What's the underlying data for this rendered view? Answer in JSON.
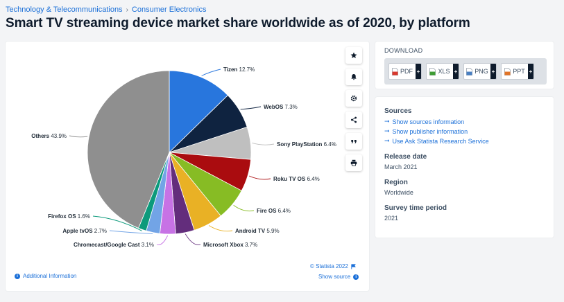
{
  "breadcrumb": {
    "level1": "Technology & Telecommunications",
    "separator": "›",
    "level2": "Consumer Electronics"
  },
  "title": "Smart TV streaming device market share worldwide as of 2020, by platform",
  "chart_data": {
    "type": "pie",
    "title": "",
    "unit": "%",
    "start": "12 o'clock, clockwise",
    "slices": [
      {
        "label": "Tizen",
        "value": 12.7,
        "display": "12.7%",
        "color": "#2876dd"
      },
      {
        "label": "WebOS",
        "value": 7.3,
        "display": "7.3%",
        "color": "#0f2340"
      },
      {
        "label": "Sony PlayStation",
        "value": 6.4,
        "display": "6.4%",
        "color": "#bfbfbf"
      },
      {
        "label": "Roku TV OS",
        "value": 6.4,
        "display": "6.4%",
        "color": "#aa0c0f"
      },
      {
        "label": "Fire OS",
        "value": 6.4,
        "display": "6.4%",
        "color": "#87bc24"
      },
      {
        "label": "Android TV",
        "value": 5.9,
        "display": "5.9%",
        "color": "#e9b125"
      },
      {
        "label": "Microsoft Xbox",
        "value": 3.7,
        "display": "3.7%",
        "color": "#632d7c"
      },
      {
        "label": "Chromecast/Google Cast",
        "value": 3.1,
        "display": "3.1%",
        "color": "#c772e5"
      },
      {
        "label": "Apple tvOS",
        "value": 2.7,
        "display": "2.7%",
        "color": "#72a4e6"
      },
      {
        "label": "Firefox OS",
        "value": 1.6,
        "display": "1.6%",
        "color": "#0c9a7b"
      },
      {
        "label": "Others",
        "value": 43.9,
        "display": "43.9%",
        "color": "#8f8f8f"
      }
    ]
  },
  "toolbar": {
    "icons": [
      "star-icon",
      "bell-icon",
      "gear-icon",
      "share-icon",
      "quote-icon",
      "print-icon"
    ]
  },
  "footer": {
    "copyright": "© Statista 2022",
    "additional_info": "Additional Information",
    "show_source": "Show source"
  },
  "download": {
    "title": "DOWNLOAD",
    "buttons": [
      {
        "label": "PDF",
        "color": "#d83a2f"
      },
      {
        "label": "XLS",
        "color": "#3f9c35"
      },
      {
        "label": "PNG",
        "color": "#4a7fc1"
      },
      {
        "label": "PPT",
        "color": "#e07428"
      }
    ],
    "plus": "+"
  },
  "info": {
    "sources_title": "Sources",
    "links": [
      "Show sources information",
      "Show publisher information",
      "Use Ask Statista Research Service"
    ],
    "release_title": "Release date",
    "release_value": "March 2021",
    "region_title": "Region",
    "region_value": "Worldwide",
    "survey_title": "Survey time period",
    "survey_value": "2021"
  },
  "colors": {
    "accent": "#1a6fd8",
    "dark": "#0e1b2c"
  }
}
